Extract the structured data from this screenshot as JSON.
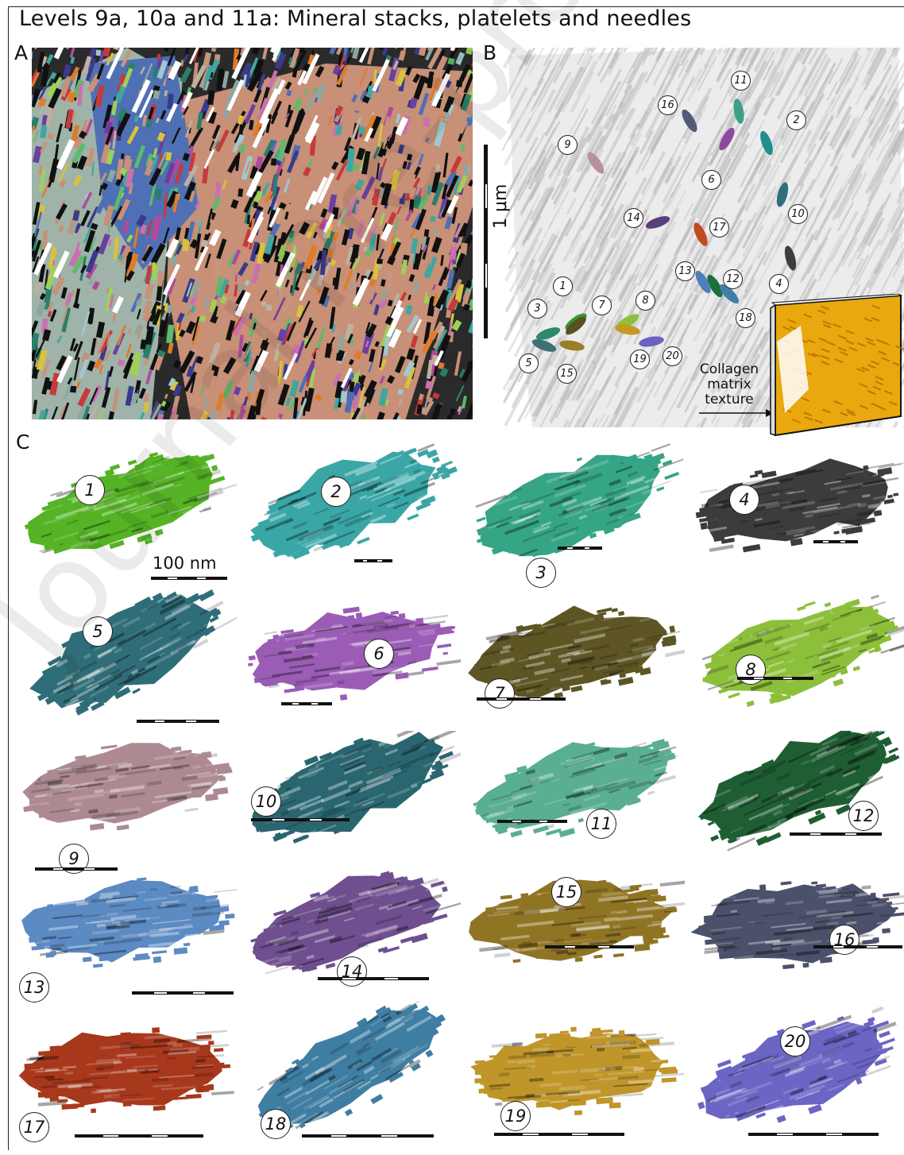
{
  "title": "Levels 9a, 10a and 11a: Mineral stacks, platelets and needles",
  "panel_labels": {
    "a": "A",
    "b": "B",
    "c": "C"
  },
  "panel_b": {
    "scale_label": "1 μm",
    "collagen_label_1": "Collagen",
    "collagen_label_2": "matrix",
    "collagen_label_3": "texture",
    "markers": [
      {
        "n": "1",
        "color": "#2e9a2a"
      },
      {
        "n": "2",
        "color": "#1f8f8c"
      },
      {
        "n": "3",
        "color": "#2a8a6e"
      },
      {
        "n": "4",
        "color": "#3d3d3d"
      },
      {
        "n": "5",
        "color": "#3f6f78"
      },
      {
        "n": "6",
        "color": "#8b4aa0"
      },
      {
        "n": "7",
        "color": "#5a5020"
      },
      {
        "n": "8",
        "color": "#8fbf3a"
      },
      {
        "n": "9",
        "color": "#b98f9a"
      },
      {
        "n": "10",
        "color": "#2f6f7a"
      },
      {
        "n": "11",
        "color": "#3d9f86"
      },
      {
        "n": "12",
        "color": "#1f6f3a"
      },
      {
        "n": "13",
        "color": "#4f7fb8"
      },
      {
        "n": "14",
        "color": "#5a3f7a"
      },
      {
        "n": "15",
        "color": "#9a7f2a"
      },
      {
        "n": "16",
        "color": "#555a78"
      },
      {
        "n": "17",
        "color": "#c24b22"
      },
      {
        "n": "18",
        "color": "#3f7fa8"
      },
      {
        "n": "19",
        "color": "#c49a22"
      },
      {
        "n": "20",
        "color": "#6a64c0"
      }
    ]
  },
  "panel_c": {
    "scale_label": "100 nm",
    "crystals": [
      {
        "n": "1",
        "color": "#55b325"
      },
      {
        "n": "2",
        "color": "#3aa6a6"
      },
      {
        "n": "3",
        "color": "#35a585"
      },
      {
        "n": "4",
        "color": "#3c3c3c"
      },
      {
        "n": "5",
        "color": "#2f6e78"
      },
      {
        "n": "6",
        "color": "#9a5cb5"
      },
      {
        "n": "7",
        "color": "#5e5524"
      },
      {
        "n": "8",
        "color": "#8cbf3a"
      },
      {
        "n": "9",
        "color": "#ad8a92"
      },
      {
        "n": "10",
        "color": "#2a6670"
      },
      {
        "n": "11",
        "color": "#5aae94"
      },
      {
        "n": "12",
        "color": "#1f5e33"
      },
      {
        "n": "13",
        "color": "#5c8ac2"
      },
      {
        "n": "14",
        "color": "#6f4f8f"
      },
      {
        "n": "15",
        "color": "#8f7424"
      },
      {
        "n": "16",
        "color": "#4c516b"
      },
      {
        "n": "17",
        "color": "#a8381c"
      },
      {
        "n": "18",
        "color": "#3f7ea3"
      },
      {
        "n": "19",
        "color": "#c0962a"
      },
      {
        "n": "20",
        "color": "#6b65c4"
      }
    ]
  },
  "watermark": "Journal Pre-proof"
}
